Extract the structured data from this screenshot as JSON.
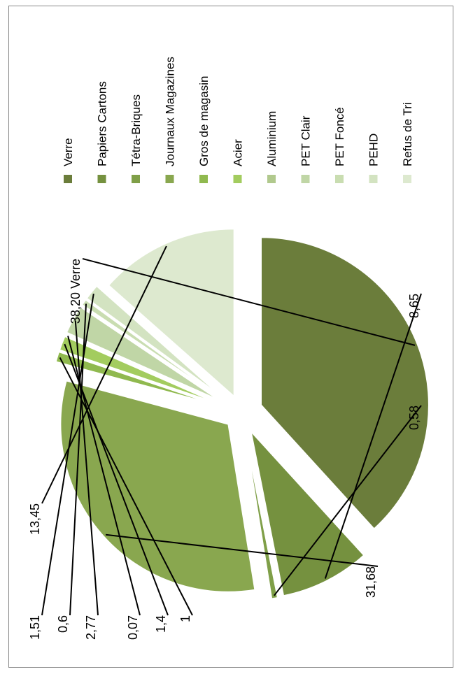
{
  "chart_data": {
    "type": "pie",
    "exploded": true,
    "rotated_view": "90deg-counterclockwise",
    "legend_position": "right",
    "categories": [
      "Verre",
      "Papiers Cartons",
      "Tétra-Briques",
      "Journaux Magazines",
      "Gros de magasin",
      "Acier",
      "Aluminium",
      "PET Clair",
      "PET Foncé",
      "PEHD",
      "Refus de Tri"
    ],
    "values": [
      38.2,
      8.65,
      0.58,
      31.68,
      1,
      1.4,
      0.07,
      2.77,
      0.6,
      1.51,
      13.45
    ],
    "data_labels": [
      "38,20 Verre",
      "8,65",
      "0,58",
      "31,68",
      "1",
      "1,4",
      "0,07",
      "2,77",
      "0,6",
      "1,51",
      "13,45"
    ],
    "colors": [
      "#6b7d3b",
      "#75913f",
      "#7f9f48",
      "#89a74f",
      "#90b94f",
      "#a3cc5f",
      "#b1c98d",
      "#c0d6a6",
      "#c9ddb1",
      "#d3e3c1",
      "#dde9cf"
    ]
  }
}
